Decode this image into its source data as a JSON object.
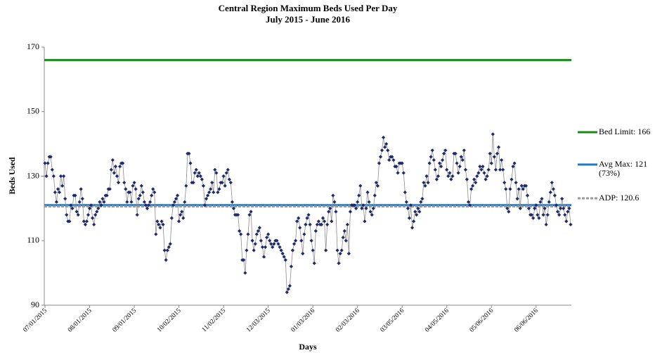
{
  "chart_data": {
    "type": "line",
    "title": "Central Region Maximum Beds Used Per Day",
    "subtitle": "July 2015 - June 2016",
    "x_label": "Days",
    "y_label": "Beds Used",
    "ylim": [
      90,
      170
    ],
    "yticks": [
      90,
      110,
      130,
      150,
      170
    ],
    "grid": false,
    "legend": "right",
    "categories": [
      "07/01/2015",
      null,
      null,
      null,
      null,
      null,
      null,
      null,
      null,
      null,
      null,
      null,
      null,
      null,
      null,
      null,
      null,
      null,
      null,
      null,
      null,
      null,
      null,
      null,
      null,
      null,
      null,
      null,
      null,
      null,
      null,
      "08/01/2015",
      null,
      null,
      null,
      null,
      null,
      null,
      null,
      null,
      null,
      null,
      null,
      null,
      null,
      null,
      null,
      null,
      null,
      null,
      null,
      null,
      null,
      null,
      null,
      null,
      null,
      null,
      null,
      null,
      null,
      null,
      "09/01/2015",
      null,
      null,
      null,
      null,
      null,
      null,
      null,
      null,
      null,
      null,
      null,
      null,
      null,
      null,
      null,
      null,
      null,
      null,
      null,
      null,
      null,
      null,
      null,
      null,
      null,
      null,
      null,
      null,
      null,
      null,
      "10/02/2015",
      null,
      null,
      null,
      null,
      null,
      null,
      null,
      null,
      null,
      null,
      null,
      null,
      null,
      null,
      null,
      null,
      null,
      null,
      null,
      null,
      null,
      null,
      null,
      null,
      null,
      null,
      null,
      null,
      null,
      null,
      "11/02/2015",
      null,
      null,
      null,
      null,
      null,
      null,
      null,
      null,
      null,
      null,
      null,
      null,
      null,
      null,
      null,
      null,
      null,
      null,
      null,
      null,
      null,
      null,
      null,
      null,
      null,
      null,
      null,
      null,
      null,
      null,
      "12/03/2015",
      null,
      null,
      null,
      null,
      null,
      null,
      null,
      null,
      null,
      null,
      null,
      null,
      null,
      null,
      null,
      null,
      null,
      null,
      null,
      null,
      null,
      null,
      null,
      null,
      null,
      null,
      null,
      null,
      null,
      null,
      "01/03/2016",
      null,
      null,
      null,
      null,
      null,
      null,
      null,
      null,
      null,
      null,
      null,
      null,
      null,
      null,
      null,
      null,
      null,
      null,
      null,
      null,
      null,
      null,
      null,
      null,
      null,
      null,
      null,
      null,
      null,
      null,
      "02/03/2016",
      null,
      null,
      null,
      null,
      null,
      null,
      null,
      null,
      null,
      null,
      null,
      null,
      null,
      null,
      null,
      null,
      null,
      null,
      null,
      null,
      null,
      null,
      null,
      null,
      null,
      null,
      null,
      null,
      null,
      null,
      "03/05/2016",
      null,
      null,
      null,
      null,
      null,
      null,
      null,
      null,
      null,
      null,
      null,
      null,
      null,
      null,
      null,
      null,
      null,
      null,
      null,
      null,
      null,
      null,
      null,
      null,
      null,
      null,
      null,
      null,
      null,
      null,
      "04/05/2016",
      null,
      null,
      null,
      null,
      null,
      null,
      null,
      null,
      null,
      null,
      null,
      null,
      null,
      null,
      null,
      null,
      null,
      null,
      null,
      null,
      null,
      null,
      null,
      null,
      null,
      null,
      null,
      null,
      null,
      null,
      "05/06/2016",
      null,
      null,
      null,
      null,
      null,
      null,
      null,
      null,
      null,
      null,
      null,
      null,
      null,
      null,
      null,
      null,
      null,
      null,
      null,
      null,
      null,
      null,
      null,
      null,
      null,
      null,
      null,
      null,
      null,
      null,
      "06/06/2016",
      null,
      null,
      null,
      null,
      null,
      null,
      null,
      null,
      null,
      null,
      null,
      null,
      null,
      null,
      null,
      null,
      null,
      null,
      null,
      null,
      null,
      null,
      null,
      null
    ],
    "series": [
      {
        "color": "#1f2a6b",
        "line_color": "#8c8c8c",
        "values": [
          134,
          130,
          134,
          136,
          136,
          132,
          130,
          125,
          122,
          126,
          125,
          130,
          127,
          130,
          123,
          118,
          116,
          116,
          121,
          120,
          124,
          124,
          119,
          118,
          122,
          126,
          123,
          116,
          115,
          116,
          118,
          120,
          121,
          117,
          115,
          118,
          119,
          120,
          122,
          121,
          123,
          122,
          124,
          124,
          126,
          126,
          132,
          135,
          131,
          133,
          130,
          128,
          133,
          134,
          134,
          128,
          126,
          122,
          125,
          125,
          122,
          127,
          128,
          126,
          118,
          123,
          124,
          127,
          125,
          122,
          121,
          120,
          121,
          122,
          124,
          126,
          125,
          112,
          116,
          115,
          114,
          116,
          115,
          107,
          104,
          107,
          108,
          109,
          117,
          121,
          122,
          123,
          124,
          116,
          118,
          119,
          117,
          122,
          127,
          137,
          137,
          134,
          128,
          128,
          131,
          132,
          130,
          131,
          130,
          129,
          127,
          121,
          123,
          124,
          125,
          126,
          128,
          125,
          132,
          131,
          125,
          126,
          128,
          128,
          130,
          127,
          131,
          132,
          129,
          128,
          122,
          120,
          118,
          118,
          118,
          113,
          112,
          104,
          104,
          100,
          107,
          112,
          118,
          119,
          110,
          107,
          109,
          112,
          113,
          114,
          110,
          108,
          105,
          108,
          111,
          112,
          110,
          109,
          108,
          109,
          110,
          110,
          109,
          108,
          107,
          106,
          105,
          104,
          94,
          95,
          96,
          102,
          107,
          109,
          110,
          116,
          117,
          114,
          110,
          106,
          112,
          115,
          117,
          118,
          115,
          110,
          107,
          103,
          113,
          115,
          116,
          115,
          115,
          117,
          116,
          107,
          115,
          119,
          120,
          116,
          124,
          122,
          119,
          107,
          103,
          106,
          107,
          111,
          113,
          110,
          115,
          106,
          119,
          121,
          121,
          121,
          120,
          122,
          124,
          127,
          120,
          121,
          116,
          120,
          125,
          122,
          119,
          118,
          120,
          124,
          128,
          127,
          134,
          136,
          138,
          142,
          139,
          140,
          138,
          135,
          136,
          136,
          135,
          133,
          133,
          131,
          134,
          134,
          134,
          131,
          125,
          122,
          120,
          117,
          121,
          114,
          116,
          119,
          118,
          120,
          119,
          122,
          123,
          128,
          127,
          130,
          128,
          134,
          136,
          138,
          135,
          132,
          129,
          130,
          134,
          133,
          135,
          137,
          138,
          132,
          130,
          131,
          129,
          130,
          137,
          137,
          134,
          131,
          133,
          136,
          135,
          138,
          132,
          129,
          122,
          121,
          126,
          127,
          129,
          128,
          130,
          131,
          133,
          132,
          133,
          131,
          129,
          130,
          132,
          137,
          134,
          143,
          136,
          132,
          137,
          139,
          132,
          135,
          132,
          128,
          126,
          120,
          119,
          126,
          129,
          133,
          134,
          128,
          123,
          126,
          120,
          127,
          126,
          127,
          127,
          124,
          120,
          118,
          118,
          117,
          120,
          121,
          118,
          117,
          122,
          123,
          118,
          120,
          115,
          118,
          122,
          125,
          128,
          126,
          124,
          121,
          119,
          118,
          120,
          123,
          120,
          118,
          116,
          119,
          120,
          115
        ]
      }
    ],
    "reference_lines": [
      {
        "name": "Bed Limit: 166",
        "value": 166,
        "color": "#1a8a1a",
        "dashed": false
      },
      {
        "name": "Avg Max: 121 (73%)",
        "value": 121,
        "color": "#1f78c8",
        "dashed": false
      },
      {
        "name": "ADP: 120.6",
        "value": 120.6,
        "color": "#9a9a9a",
        "dashed": true
      }
    ]
  }
}
